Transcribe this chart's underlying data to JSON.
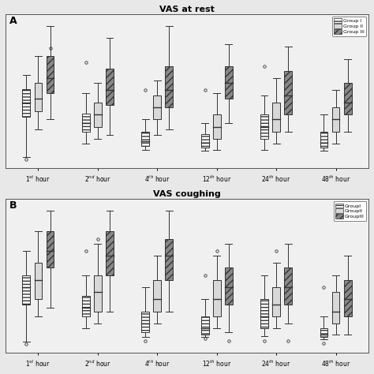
{
  "title_A": "VAS at rest",
  "title_B": "VAS coughing",
  "label_A": "A",
  "label_B": "B",
  "time_labels": [
    "1$^{st}$ hour",
    "2$^{nd}$ hour",
    "4$^{th}$ hour",
    "12$^{th}$ hour",
    "24$^{th}$ hour",
    "48$^{th}$ hour"
  ],
  "legend_labels_A": [
    "Group I",
    "Group II",
    "Group III"
  ],
  "legend_labels_B": [
    "GroupI",
    "GroupII",
    "GroupIII"
  ],
  "bg_color": "#e8e8e8",
  "plot_bg": "#f0f0f0",
  "box_colors": [
    "white",
    "#d8d8d8",
    "#888888"
  ],
  "hatches": [
    "----",
    "",
    "////"
  ],
  "panel_A": [
    {
      "g1": {
        "whislo": -0.3,
        "q1": 3.0,
        "med": 4.2,
        "q3": 5.3,
        "whishi": 6.5,
        "fliers": [
          -0.5
        ]
      },
      "g2": {
        "whislo": 2.0,
        "q1": 3.5,
        "med": 4.5,
        "q3": 5.8,
        "whishi": 8.0,
        "fliers": []
      },
      "g3": {
        "whislo": 2.8,
        "q1": 5.0,
        "med": 6.2,
        "q3": 8.0,
        "whishi": 10.5,
        "fliers": [
          8.7
        ]
      }
    },
    {
      "g1": {
        "whislo": 0.8,
        "q1": 1.8,
        "med": 2.5,
        "q3": 3.3,
        "whishi": 5.0,
        "fliers": [
          7.5
        ]
      },
      "g2": {
        "whislo": 1.2,
        "q1": 2.2,
        "med": 3.2,
        "q3": 4.2,
        "whishi": 5.8,
        "fliers": []
      },
      "g3": {
        "whislo": 1.5,
        "q1": 4.0,
        "med": 5.2,
        "q3": 7.0,
        "whishi": 9.5,
        "fliers": []
      }
    },
    {
      "g1": {
        "whislo": 0.3,
        "q1": 0.6,
        "med": 1.0,
        "q3": 1.8,
        "whishi": 2.8,
        "fliers": [
          5.2
        ]
      },
      "g2": {
        "whislo": 1.5,
        "q1": 2.8,
        "med": 3.8,
        "q3": 4.8,
        "whishi": 6.0,
        "fliers": []
      },
      "g3": {
        "whislo": 2.0,
        "q1": 3.8,
        "med": 5.2,
        "q3": 7.2,
        "whishi": 10.5,
        "fliers": []
      }
    },
    {
      "g1": {
        "whislo": 0.2,
        "q1": 0.5,
        "med": 0.9,
        "q3": 1.6,
        "whishi": 2.5,
        "fliers": [
          5.2
        ]
      },
      "g2": {
        "whislo": 0.3,
        "q1": 1.2,
        "med": 2.2,
        "q3": 3.2,
        "whishi": 5.0,
        "fliers": []
      },
      "g3": {
        "whislo": 2.5,
        "q1": 4.5,
        "med": 5.8,
        "q3": 7.2,
        "whishi": 9.0,
        "fliers": []
      }
    },
    {
      "g1": {
        "whislo": 0.3,
        "q1": 1.2,
        "med": 2.2,
        "q3": 3.2,
        "whishi": 4.8,
        "fliers": [
          7.2
        ]
      },
      "g2": {
        "whislo": 0.8,
        "q1": 1.8,
        "med": 2.8,
        "q3": 4.2,
        "whishi": 6.2,
        "fliers": []
      },
      "g3": {
        "whislo": 1.8,
        "q1": 3.2,
        "med": 4.8,
        "q3": 6.8,
        "whishi": 8.8,
        "fliers": []
      }
    },
    {
      "g1": {
        "whislo": 0.2,
        "q1": 0.5,
        "med": 0.9,
        "q3": 1.8,
        "whishi": 3.2,
        "fliers": []
      },
      "g2": {
        "whislo": 0.8,
        "q1": 1.8,
        "med": 2.8,
        "q3": 3.8,
        "whishi": 5.2,
        "fliers": []
      },
      "g3": {
        "whislo": 1.8,
        "q1": 3.2,
        "med": 4.2,
        "q3": 5.8,
        "whishi": 7.8,
        "fliers": []
      }
    }
  ],
  "panel_B": [
    {
      "g1": {
        "whislo": -0.3,
        "q1": 2.8,
        "med": 4.2,
        "q3": 5.2,
        "whishi": 7.2,
        "fliers": [
          -0.5
        ]
      },
      "g2": {
        "whislo": 1.8,
        "q1": 3.2,
        "med": 4.8,
        "q3": 6.2,
        "whishi": 8.8,
        "fliers": []
      },
      "g3": {
        "whislo": 2.5,
        "q1": 5.8,
        "med": 7.2,
        "q3": 8.8,
        "whishi": 10.5,
        "fliers": []
      }
    },
    {
      "g1": {
        "whislo": 0.8,
        "q1": 1.8,
        "med": 2.5,
        "q3": 3.5,
        "whishi": 5.2,
        "fliers": [
          7.2
        ]
      },
      "g2": {
        "whislo": 1.2,
        "q1": 2.2,
        "med": 3.8,
        "q3": 5.2,
        "whishi": 7.8,
        "fliers": [
          8.2
        ]
      },
      "g3": {
        "whislo": 2.2,
        "q1": 5.2,
        "med": 6.8,
        "q3": 8.8,
        "whishi": 10.5,
        "fliers": []
      }
    },
    {
      "g1": {
        "whislo": 0.1,
        "q1": 0.5,
        "med": 1.2,
        "q3": 2.2,
        "whishi": 4.2,
        "fliers": [
          -0.2
        ]
      },
      "g2": {
        "whislo": 1.2,
        "q1": 2.2,
        "med": 3.2,
        "q3": 4.8,
        "whishi": 6.8,
        "fliers": []
      },
      "g3": {
        "whislo": 2.2,
        "q1": 4.8,
        "med": 6.8,
        "q3": 8.2,
        "whishi": 10.5,
        "fliers": []
      }
    },
    {
      "g1": {
        "whislo": 0.1,
        "q1": 0.3,
        "med": 0.8,
        "q3": 1.8,
        "whishi": 3.2,
        "fliers": [
          0.0,
          5.2
        ]
      },
      "g2": {
        "whislo": 0.8,
        "q1": 1.8,
        "med": 3.2,
        "q3": 4.8,
        "whishi": 6.8,
        "fliers": [
          7.2
        ]
      },
      "g3": {
        "whislo": 0.5,
        "q1": 2.8,
        "med": 4.2,
        "q3": 5.8,
        "whishi": 7.8,
        "fliers": [
          -0.2
        ]
      }
    },
    {
      "g1": {
        "whislo": 0.2,
        "q1": 0.8,
        "med": 1.8,
        "q3": 3.2,
        "whishi": 5.2,
        "fliers": [
          -0.2
        ]
      },
      "g2": {
        "whislo": 0.8,
        "q1": 1.8,
        "med": 2.8,
        "q3": 4.2,
        "whishi": 6.2,
        "fliers": [
          7.2
        ]
      },
      "g3": {
        "whislo": 1.2,
        "q1": 2.8,
        "med": 4.2,
        "q3": 5.8,
        "whishi": 7.8,
        "fliers": [
          -0.2
        ]
      }
    },
    {
      "g1": {
        "whislo": -0.1,
        "q1": 0.1,
        "med": 0.3,
        "q3": 0.8,
        "whishi": 1.8,
        "fliers": [
          -0.4,
          4.2
        ]
      },
      "g2": {
        "whislo": 0.3,
        "q1": 1.2,
        "med": 2.2,
        "q3": 3.8,
        "whishi": 5.2,
        "fliers": []
      },
      "g3": {
        "whislo": 0.3,
        "q1": 1.8,
        "med": 3.2,
        "q3": 4.8,
        "whishi": 6.8,
        "fliers": []
      }
    }
  ]
}
